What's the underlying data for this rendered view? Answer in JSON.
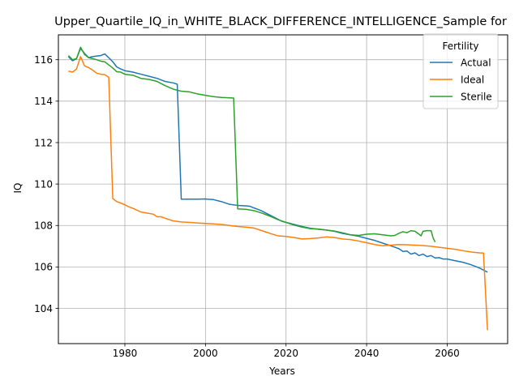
{
  "chart_data": {
    "type": "line",
    "title": "Upper_Quartile_IQ_in_WHITE_BLACK_DIFFERENCE_INTELLIGENCE_Sample for",
    "xlabel": "Years",
    "ylabel": "IQ",
    "xlim": [
      1963.5,
      2075
    ],
    "ylim": [
      102.3,
      117.2
    ],
    "xticks": [
      1980,
      2000,
      2020,
      2040,
      2060
    ],
    "yticks": [
      104,
      106,
      108,
      110,
      112,
      114,
      116
    ],
    "grid": true,
    "legend": {
      "title": "Fertility",
      "placement": "top-right"
    },
    "series": [
      {
        "name": "Actual",
        "color": "#1f77b4",
        "points": [
          [
            1966,
            116.15
          ],
          [
            1967,
            115.95
          ],
          [
            1968,
            116.05
          ],
          [
            1969,
            116.55
          ],
          [
            1970,
            116.3
          ],
          [
            1971,
            116.1
          ],
          [
            1972,
            116.15
          ],
          [
            1973,
            116.18
          ],
          [
            1974,
            116.2
          ],
          [
            1975,
            116.28
          ],
          [
            1976,
            116.1
          ],
          [
            1977,
            115.9
          ],
          [
            1978,
            115.65
          ],
          [
            1979,
            115.55
          ],
          [
            1980,
            115.47
          ],
          [
            1982,
            115.4
          ],
          [
            1984,
            115.3
          ],
          [
            1986,
            115.2
          ],
          [
            1988,
            115.1
          ],
          [
            1990,
            114.95
          ],
          [
            1992,
            114.88
          ],
          [
            1993,
            114.82
          ],
          [
            1994,
            109.27
          ],
          [
            1996,
            109.27
          ],
          [
            1998,
            109.27
          ],
          [
            2000,
            109.28
          ],
          [
            2002,
            109.25
          ],
          [
            2004,
            109.15
          ],
          [
            2006,
            109.02
          ],
          [
            2008,
            108.97
          ],
          [
            2010,
            108.95
          ],
          [
            2011,
            108.93
          ],
          [
            2012,
            108.85
          ],
          [
            2013,
            108.78
          ],
          [
            2014,
            108.7
          ],
          [
            2015,
            108.6
          ],
          [
            2016,
            108.5
          ],
          [
            2018,
            108.3
          ],
          [
            2019,
            108.2
          ],
          [
            2020,
            108.15
          ],
          [
            2022,
            108.05
          ],
          [
            2024,
            107.95
          ],
          [
            2026,
            107.87
          ],
          [
            2028,
            107.82
          ],
          [
            2030,
            107.78
          ],
          [
            2032,
            107.72
          ],
          [
            2034,
            107.62
          ],
          [
            2036,
            107.55
          ],
          [
            2038,
            107.48
          ],
          [
            2040,
            107.38
          ],
          [
            2042,
            107.28
          ],
          [
            2044,
            107.15
          ],
          [
            2046,
            107.02
          ],
          [
            2047,
            106.95
          ],
          [
            2048,
            106.88
          ],
          [
            2049,
            106.75
          ],
          [
            2050,
            106.77
          ],
          [
            2051,
            106.62
          ],
          [
            2052,
            106.68
          ],
          [
            2053,
            106.55
          ],
          [
            2054,
            106.62
          ],
          [
            2055,
            106.5
          ],
          [
            2056,
            106.55
          ],
          [
            2057,
            106.43
          ],
          [
            2058,
            106.45
          ],
          [
            2059,
            106.38
          ],
          [
            2060,
            106.38
          ],
          [
            2062,
            106.3
          ],
          [
            2064,
            106.22
          ],
          [
            2066,
            106.1
          ],
          [
            2068,
            105.95
          ],
          [
            2070,
            105.75
          ]
        ]
      },
      {
        "name": "Ideal",
        "color": "#ff7f0e",
        "points": [
          [
            1966,
            115.45
          ],
          [
            1967,
            115.4
          ],
          [
            1968,
            115.55
          ],
          [
            1969,
            116.15
          ],
          [
            1970,
            115.7
          ],
          [
            1971,
            115.62
          ],
          [
            1972,
            115.5
          ],
          [
            1973,
            115.35
          ],
          [
            1974,
            115.3
          ],
          [
            1975,
            115.28
          ],
          [
            1976,
            115.15
          ],
          [
            1977,
            109.3
          ],
          [
            1978,
            109.15
          ],
          [
            1979,
            109.08
          ],
          [
            1980,
            109.0
          ],
          [
            1981,
            108.9
          ],
          [
            1982,
            108.83
          ],
          [
            1984,
            108.65
          ],
          [
            1986,
            108.58
          ],
          [
            1987,
            108.55
          ],
          [
            1988,
            108.42
          ],
          [
            1989,
            108.42
          ],
          [
            1990,
            108.35
          ],
          [
            1992,
            108.22
          ],
          [
            1994,
            108.17
          ],
          [
            1996,
            108.15
          ],
          [
            1998,
            108.12
          ],
          [
            2000,
            108.1
          ],
          [
            2002,
            108.08
          ],
          [
            2004,
            108.05
          ],
          [
            2006,
            108.0
          ],
          [
            2008,
            107.95
          ],
          [
            2010,
            107.92
          ],
          [
            2012,
            107.88
          ],
          [
            2014,
            107.75
          ],
          [
            2016,
            107.62
          ],
          [
            2018,
            107.5
          ],
          [
            2020,
            107.47
          ],
          [
            2022,
            107.42
          ],
          [
            2024,
            107.35
          ],
          [
            2026,
            107.37
          ],
          [
            2028,
            107.4
          ],
          [
            2030,
            107.45
          ],
          [
            2032,
            107.42
          ],
          [
            2034,
            107.35
          ],
          [
            2036,
            107.32
          ],
          [
            2038,
            107.25
          ],
          [
            2040,
            107.17
          ],
          [
            2042,
            107.08
          ],
          [
            2044,
            107.02
          ],
          [
            2046,
            107.05
          ],
          [
            2048,
            107.08
          ],
          [
            2050,
            107.07
          ],
          [
            2052,
            107.05
          ],
          [
            2054,
            107.03
          ],
          [
            2056,
            107.0
          ],
          [
            2058,
            106.95
          ],
          [
            2060,
            106.9
          ],
          [
            2062,
            106.85
          ],
          [
            2064,
            106.78
          ],
          [
            2066,
            106.72
          ],
          [
            2068,
            106.68
          ],
          [
            2069,
            106.67
          ],
          [
            2070,
            102.95
          ]
        ]
      },
      {
        "name": "Sterile",
        "color": "#2ca02c",
        "points": [
          [
            1966,
            116.2
          ],
          [
            1967,
            116.0
          ],
          [
            1968,
            116.05
          ],
          [
            1969,
            116.6
          ],
          [
            1970,
            116.25
          ],
          [
            1971,
            116.1
          ],
          [
            1972,
            116.05
          ],
          [
            1973,
            116.0
          ],
          [
            1974,
            115.93
          ],
          [
            1975,
            115.9
          ],
          [
            1976,
            115.75
          ],
          [
            1977,
            115.6
          ],
          [
            1978,
            115.42
          ],
          [
            1979,
            115.4
          ],
          [
            1980,
            115.3
          ],
          [
            1982,
            115.25
          ],
          [
            1984,
            115.1
          ],
          [
            1986,
            115.05
          ],
          [
            1988,
            114.95
          ],
          [
            1990,
            114.75
          ],
          [
            1992,
            114.58
          ],
          [
            1994,
            114.48
          ],
          [
            1996,
            114.45
          ],
          [
            1998,
            114.35
          ],
          [
            2000,
            114.28
          ],
          [
            2002,
            114.22
          ],
          [
            2004,
            114.18
          ],
          [
            2006,
            114.16
          ],
          [
            2007,
            114.15
          ],
          [
            2008,
            108.8
          ],
          [
            2010,
            108.78
          ],
          [
            2012,
            108.72
          ],
          [
            2014,
            108.6
          ],
          [
            2016,
            108.45
          ],
          [
            2018,
            108.28
          ],
          [
            2020,
            108.15
          ],
          [
            2022,
            108.02
          ],
          [
            2024,
            107.92
          ],
          [
            2026,
            107.85
          ],
          [
            2028,
            107.83
          ],
          [
            2030,
            107.78
          ],
          [
            2032,
            107.73
          ],
          [
            2034,
            107.65
          ],
          [
            2036,
            107.55
          ],
          [
            2038,
            107.52
          ],
          [
            2040,
            107.58
          ],
          [
            2042,
            107.6
          ],
          [
            2044,
            107.55
          ],
          [
            2046,
            107.5
          ],
          [
            2047,
            107.52
          ],
          [
            2048,
            107.62
          ],
          [
            2049,
            107.7
          ],
          [
            2050,
            107.65
          ],
          [
            2051,
            107.75
          ],
          [
            2052,
            107.72
          ],
          [
            2053,
            107.58
          ],
          [
            2053.5,
            107.5
          ],
          [
            2054,
            107.72
          ],
          [
            2055,
            107.75
          ],
          [
            2056,
            107.75
          ],
          [
            2056.5,
            107.4
          ],
          [
            2057,
            107.2
          ]
        ]
      }
    ]
  }
}
